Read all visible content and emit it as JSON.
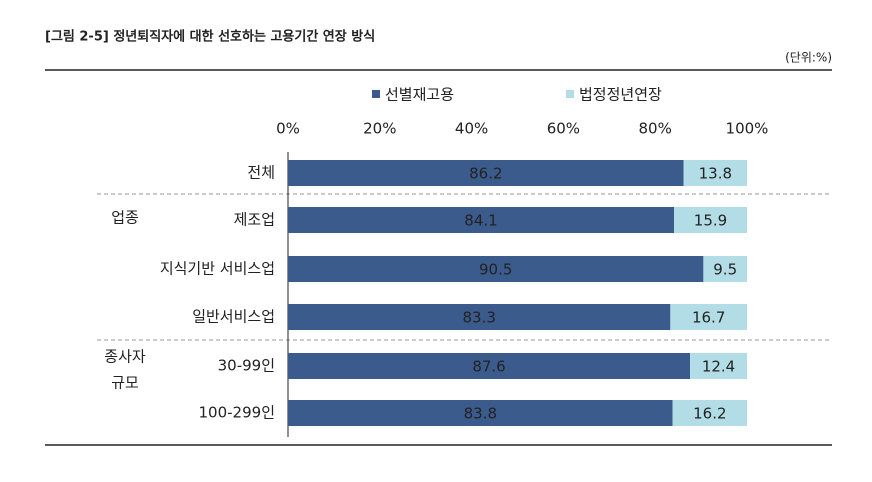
{
  "chart_data": {
    "type": "stacked_bar_horizontal",
    "title": "[그림 2-5] 정년퇴직자에 대한 선호하는 고용기간 연장 방식",
    "unit": "(단위:%)",
    "categories": [
      "전체",
      "제조업",
      "지식기반 서비스업",
      "일반서비스업",
      "30-99인",
      "100-299인"
    ],
    "group_labels": [
      [
        "업종"
      ],
      [
        "종사자",
        "규모"
      ]
    ],
    "series": [
      {
        "name": "선별재고용",
        "color": "#3a5b8c",
        "values": [
          86.2,
          84.1,
          90.5,
          83.3,
          87.6,
          83.8
        ]
      },
      {
        "name": "법정정년연장",
        "color": "#b3dde6",
        "values": [
          13.8,
          15.9,
          9.5,
          16.7,
          12.4,
          16.2
        ]
      }
    ],
    "xlim": [
      0,
      100
    ],
    "xticks": [
      {
        "value": 0,
        "label": "0%"
      },
      {
        "value": 20,
        "label": "20%"
      },
      {
        "value": 40,
        "label": "40%"
      },
      {
        "value": 60,
        "label": "60%"
      },
      {
        "value": 80,
        "label": "80%"
      },
      {
        "value": 100,
        "label": "100%"
      }
    ]
  }
}
